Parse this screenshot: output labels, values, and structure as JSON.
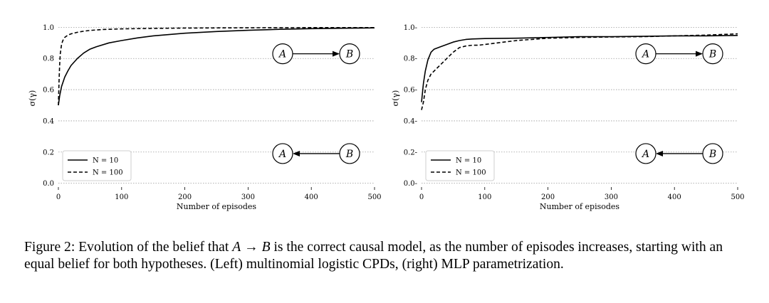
{
  "chart_data": [
    {
      "type": "line",
      "panel": "left",
      "xlabel": "Number of episodes",
      "ylabel": "σ(γ)",
      "xlim": [
        0,
        500
      ],
      "ylim": [
        -0.02,
        1.02
      ],
      "xticks": [
        0,
        100,
        200,
        300,
        400,
        500
      ],
      "yticks": [
        0.0,
        0.2,
        0.4,
        0.6,
        0.8,
        1.0
      ],
      "ytick_labels": [
        "0.0",
        "0.2",
        "0.4",
        "0.6",
        "0.8",
        "1.0"
      ],
      "grid": "horizontal dotted",
      "legend": "bottom-left",
      "series": [
        {
          "name": "N = 10",
          "style": "solid",
          "x": [
            0,
            2,
            5,
            10,
            15,
            20,
            30,
            40,
            50,
            60,
            80,
            100,
            125,
            150,
            200,
            250,
            300,
            350,
            400,
            450,
            500
          ],
          "y": [
            0.5,
            0.56,
            0.62,
            0.68,
            0.72,
            0.755,
            0.8,
            0.835,
            0.86,
            0.875,
            0.9,
            0.915,
            0.932,
            0.945,
            0.962,
            0.973,
            0.981,
            0.987,
            0.991,
            0.994,
            0.996
          ]
        },
        {
          "name": "N = 100",
          "style": "dashed",
          "x": [
            0,
            1,
            2,
            3,
            5,
            7,
            10,
            15,
            20,
            30,
            40,
            50,
            70,
            100,
            150,
            200,
            300,
            400,
            500
          ],
          "y": [
            0.5,
            0.65,
            0.76,
            0.83,
            0.89,
            0.915,
            0.935,
            0.95,
            0.958,
            0.968,
            0.975,
            0.98,
            0.986,
            0.99,
            0.993,
            0.995,
            0.997,
            0.998,
            0.998
          ]
        }
      ],
      "diagrams": [
        {
          "from": "A",
          "to": "B",
          "direction": "right",
          "y_value": 0.83
        },
        {
          "from": "B",
          "to": "A",
          "direction": "left",
          "y_value": 0.19
        }
      ]
    },
    {
      "type": "line",
      "panel": "right",
      "xlabel": "Number of episodes",
      "ylabel": "σ(γ)",
      "xlim": [
        0,
        500
      ],
      "ylim": [
        -0.02,
        1.02
      ],
      "xticks": [
        0,
        100,
        200,
        300,
        400,
        500
      ],
      "yticks": [
        0.0,
        0.2,
        0.4,
        0.6,
        0.8,
        1.0
      ],
      "ytick_labels": [
        "0.0-",
        "0.2-",
        "0.4-",
        "0.6-",
        "0.8-",
        "1.0-"
      ],
      "grid": "horizontal dotted",
      "legend": "bottom-left",
      "series": [
        {
          "name": "N = 10",
          "style": "solid",
          "x": [
            0,
            3,
            6,
            10,
            15,
            20,
            30,
            40,
            50,
            60,
            70,
            80,
            100,
            150,
            200,
            250,
            300,
            350,
            400,
            450,
            500
          ],
          "y": [
            0.52,
            0.64,
            0.72,
            0.79,
            0.84,
            0.86,
            0.875,
            0.89,
            0.905,
            0.915,
            0.922,
            0.925,
            0.928,
            0.93,
            0.935,
            0.94,
            0.94,
            0.942,
            0.945,
            0.945,
            0.948
          ]
        },
        {
          "name": "N = 100",
          "style": "dashed",
          "x": [
            0,
            3,
            6,
            10,
            15,
            20,
            25,
            30,
            40,
            50,
            60,
            70,
            80,
            90,
            100,
            120,
            150,
            200,
            250,
            300,
            350,
            400,
            450,
            500
          ],
          "y": [
            0.47,
            0.52,
            0.6,
            0.66,
            0.7,
            0.72,
            0.74,
            0.76,
            0.8,
            0.84,
            0.87,
            0.88,
            0.885,
            0.885,
            0.89,
            0.9,
            0.915,
            0.93,
            0.935,
            0.938,
            0.94,
            0.945,
            0.95,
            0.958
          ]
        }
      ],
      "diagrams": [
        {
          "from": "A",
          "to": "B",
          "direction": "right",
          "y_value": 0.83
        },
        {
          "from": "B",
          "to": "A",
          "direction": "left",
          "y_value": 0.19
        }
      ]
    }
  ],
  "caption": {
    "lead": "Figure 2: Evolution of the belief that ",
    "math_a": "A",
    "arrow": " → ",
    "math_b": "B",
    "rest": " is the correct causal model, as the number of episodes increases, starting with an equal belief for both hypotheses. (Left) multinomial logistic CPDs, (right) MLP parametrization."
  }
}
